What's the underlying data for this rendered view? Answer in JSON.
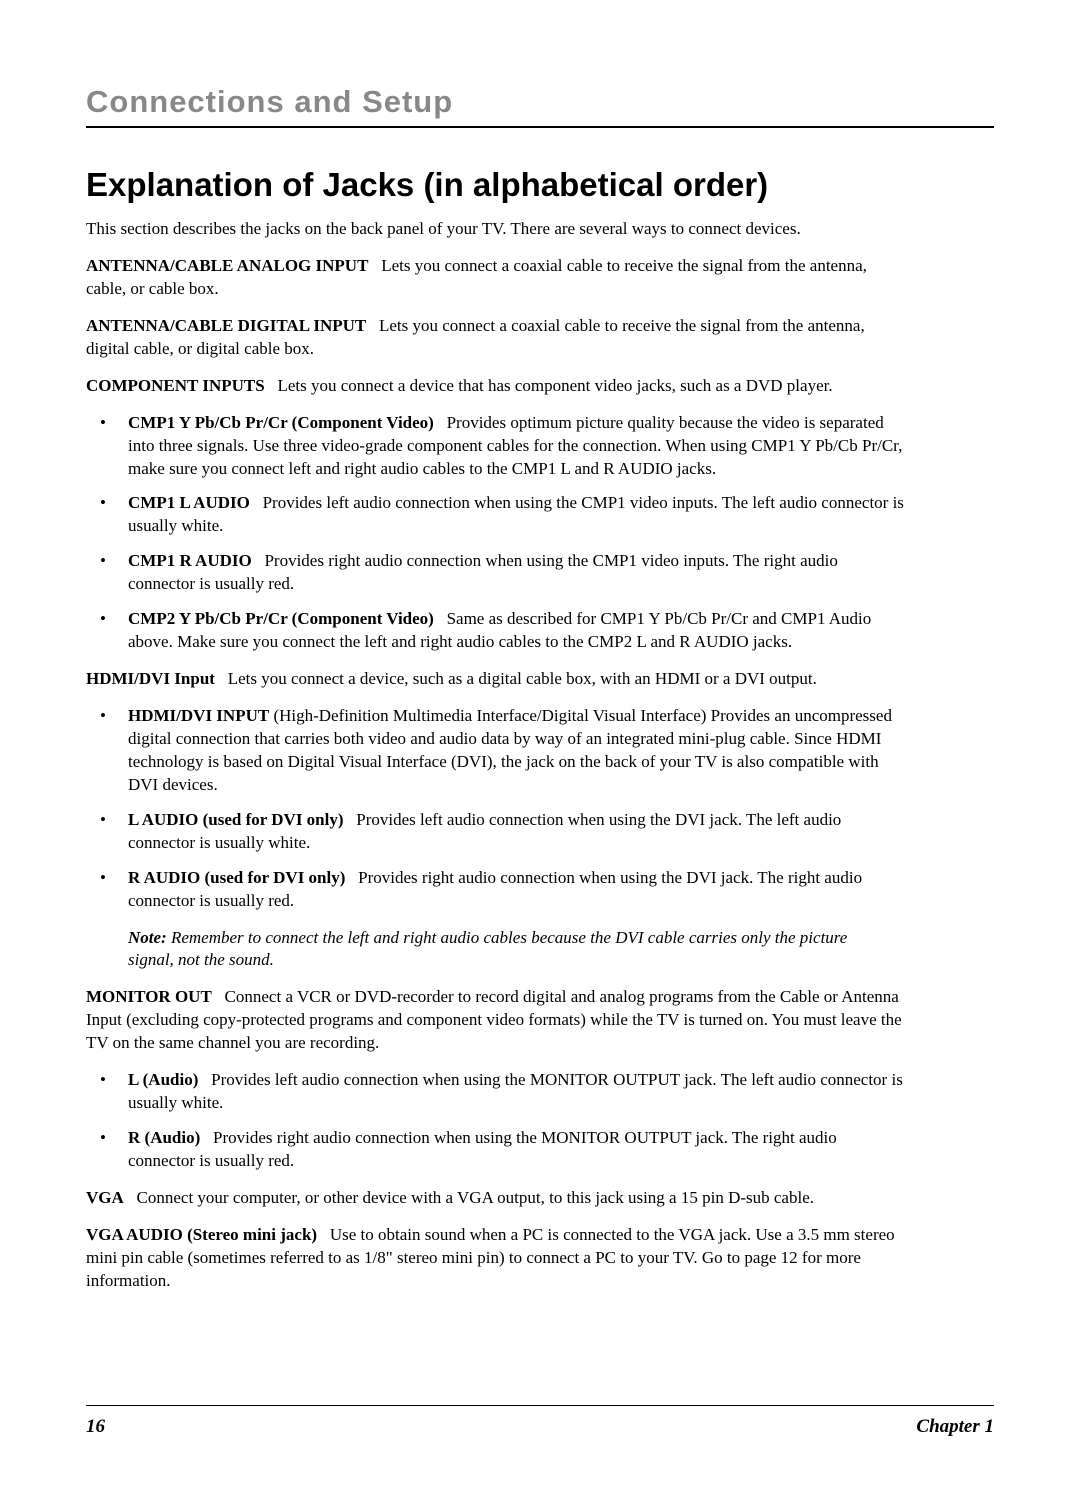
{
  "chapter_header": "Connections and Setup",
  "main_heading": "Explanation of Jacks (in alphabetical order)",
  "intro": "This section describes the jacks on the back panel of your TV. There are several ways to connect devices.",
  "antenna_analog": {
    "term": "ANTENNA/CABLE ANALOG INPUT",
    "desc": "Lets you connect a coaxial cable to receive the signal from the antenna, cable, or cable box."
  },
  "antenna_digital": {
    "term": "ANTENNA/CABLE DIGITAL INPUT",
    "desc": "Lets you connect a coaxial cable to receive the signal from the antenna, digital cable, or digital cable box."
  },
  "component": {
    "term": "COMPONENT INPUTS",
    "desc": "Lets you connect a device that has component video jacks, such as a DVD player.",
    "items": [
      {
        "term": "CMP1 Y Pb/Cb Pr/Cr (Component Video)",
        "desc": "Provides optimum picture quality because the video is separated into three signals. Use three video-grade component cables for the connection. When using CMP1 Y Pb/Cb Pr/Cr, make sure you connect left and right audio cables to the CMP1 L and R AUDIO jacks."
      },
      {
        "term": "CMP1 L AUDIO",
        "desc": "Provides left audio connection when using the CMP1 video inputs. The left audio connector is usually white."
      },
      {
        "term": "CMP1 R AUDIO",
        "desc": "Provides right audio connection when using the CMP1 video inputs. The right audio connector is usually red."
      },
      {
        "term": "CMP2 Y Pb/Cb Pr/Cr (Component Video)",
        "desc": "Same as described for CMP1 Y Pb/Cb Pr/Cr and CMP1 Audio above. Make sure you connect the left and right audio cables to the CMP2 L and R AUDIO jacks."
      }
    ]
  },
  "hdmi": {
    "term": "HDMI/DVI Input",
    "desc": "Lets you connect a device, such as a digital cable box, with an HDMI or a DVI output.",
    "items": [
      {
        "term": "HDMI/DVI INPUT",
        "desc": "(High-Definition Multimedia Interface/Digital Visual Interface)   Provides an uncompressed digital connection that carries both video and audio data by way of an integrated mini-plug cable. Since HDMI technology is based on Digital Visual Interface (DVI), the jack on the back of your TV is also compatible with DVI devices."
      },
      {
        "term": "L AUDIO (used for DVI only)",
        "desc": "Provides left audio connection when using the DVI jack. The left audio connector is usually white."
      },
      {
        "term": "R AUDIO (used for DVI only)",
        "desc": "Provides right audio connection when using the DVI jack. The right audio connector is usually red."
      }
    ],
    "note_label": "Note:",
    "note_text": "Remember to connect the left and right audio cables because the DVI cable carries only the picture signal, not the sound."
  },
  "monitor": {
    "term": "MONITOR OUT",
    "desc": "Connect a VCR or DVD-recorder to record digital and analog programs from the Cable or Antenna Input (excluding copy-protected programs and component video formats) while the TV is turned on. You must leave the TV on the same channel you are recording.",
    "items": [
      {
        "term": "L (Audio)",
        "desc": "Provides left audio connection when using the MONITOR OUTPUT jack. The left audio connector is usually white."
      },
      {
        "term": "R (Audio)",
        "desc": "Provides right audio connection when using the MONITOR OUTPUT jack. The right audio connector is usually red."
      }
    ]
  },
  "vga": {
    "term": "VGA",
    "desc": "Connect your computer, or other device with a VGA output, to this jack using a 15 pin D-sub cable."
  },
  "vga_audio": {
    "term": "VGA AUDIO (Stereo mini jack)",
    "desc": "Use to obtain sound when a PC is connected to the VGA jack. Use a 3.5 mm stereo mini pin cable (sometimes referred to as 1/8\" stereo mini pin) to connect a PC to your TV. Go to page 12 for more information."
  },
  "footer": {
    "page": "16",
    "chapter": "Chapter 1"
  }
}
